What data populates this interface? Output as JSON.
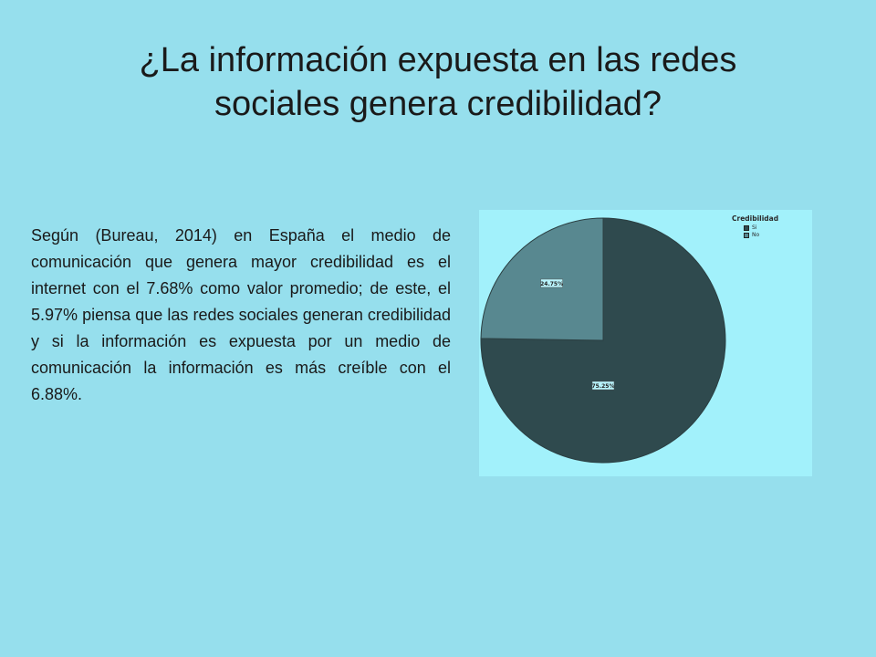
{
  "slide": {
    "title_line1": "¿La información expuesta en las redes",
    "title_line2": "sociales genera credibilidad?",
    "body": "Según (Bureau, 2014) en España el medio de comunicación que genera mayor credibilidad es el internet con el 7.68% como valor promedio; de este, el 5.97% piensa que las redes sociales generan credibilidad y si la información es expuesta por un medio de comunicación la información es más creíble con el 6.88%."
  },
  "chart_data": {
    "type": "pie",
    "legend_title": "Credibilidad",
    "legend_position": "top-right",
    "slices": [
      {
        "label": "Si",
        "value": 75.25,
        "value_label": "75.25%",
        "color": "#2f4a4e"
      },
      {
        "label": "No",
        "value": 24.75,
        "value_label": "24.75%",
        "color": "#588890"
      }
    ],
    "background_color": "#a2f1fb"
  }
}
